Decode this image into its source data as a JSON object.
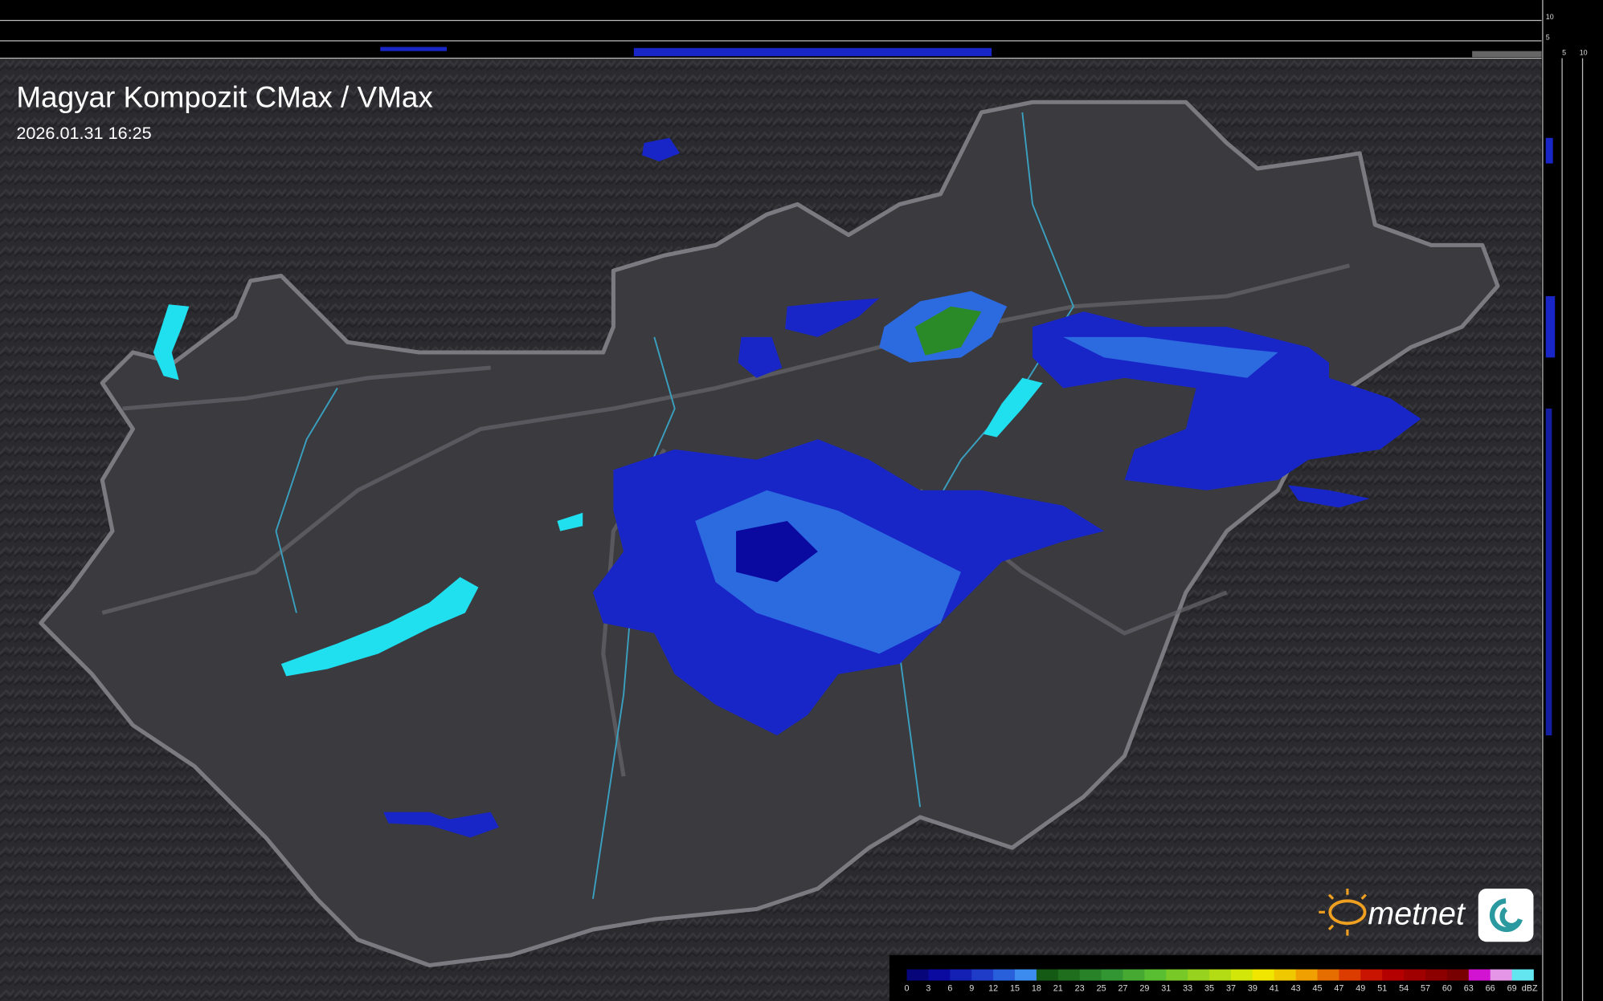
{
  "header": {
    "title": "Magyar Kompozit CMax / VMax",
    "timestamp": "2026.01.31 16:25"
  },
  "profile": {
    "top_ticks": [
      10,
      5
    ],
    "side_ticks": [
      5,
      10
    ]
  },
  "brand": "metnet",
  "legend": {
    "labels": [
      0,
      3,
      6,
      9,
      12,
      15,
      18,
      21,
      23,
      25,
      27,
      29,
      31,
      33,
      35,
      37,
      39,
      41,
      43,
      45,
      47,
      49,
      51,
      54,
      57,
      60,
      63,
      66,
      69
    ],
    "unit": "dBZ",
    "colors": [
      "#06067a",
      "#0a0aa0",
      "#1420b4",
      "#1e3cc8",
      "#2860dc",
      "#3c8cf0",
      "#145a14",
      "#1e6e1e",
      "#288228",
      "#329632",
      "#46aa32",
      "#5abe32",
      "#78c828",
      "#96d21e",
      "#b4dc14",
      "#d2e60a",
      "#f0e600",
      "#f0c800",
      "#f0a000",
      "#e66e00",
      "#dc3c00",
      "#c81400",
      "#b40000",
      "#a00000",
      "#8c0000",
      "#780000",
      "#d214d2",
      "#e696e6",
      "#64e6f0"
    ]
  }
}
